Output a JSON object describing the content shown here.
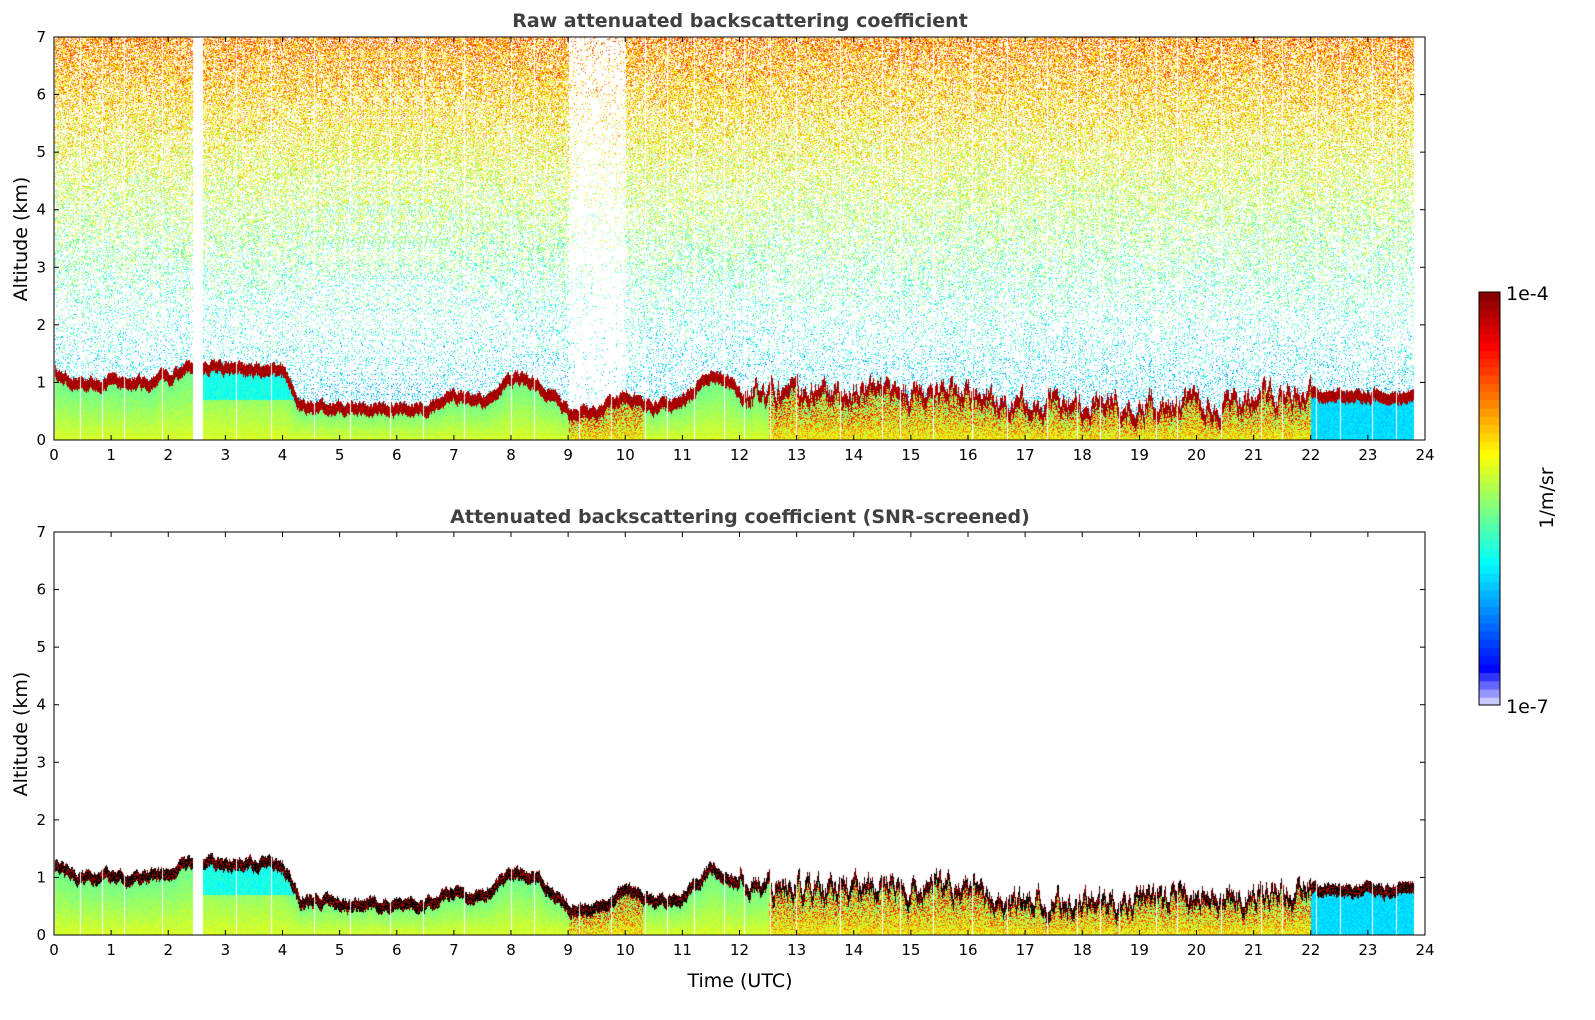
{
  "chart_data": [
    {
      "type": "heatmap",
      "title": "Raw attenuated backscattering coefficient",
      "xlabel": "",
      "ylabel": "Altitude (km)",
      "xlim": [
        0,
        24
      ],
      "ylim": [
        0,
        7
      ],
      "xticks": [
        "0",
        "1",
        "2",
        "3",
        "4",
        "5",
        "6",
        "7",
        "8",
        "9",
        "10",
        "11",
        "12",
        "13",
        "14",
        "15",
        "16",
        "17",
        "18",
        "19",
        "20",
        "21",
        "22",
        "23",
        "24"
      ],
      "yticks": [
        "0",
        "1",
        "2",
        "3",
        "4",
        "5",
        "6",
        "7"
      ],
      "screened": false
    },
    {
      "type": "heatmap",
      "title": "Attenuated backscattering coefficient (SNR-screened)",
      "xlabel": "Time (UTC)",
      "ylabel": "Altitude (km)",
      "xlim": [
        0,
        24
      ],
      "ylim": [
        0,
        7
      ],
      "xticks": [
        "0",
        "1",
        "2",
        "3",
        "4",
        "5",
        "6",
        "7",
        "8",
        "9",
        "10",
        "11",
        "12",
        "13",
        "14",
        "15",
        "16",
        "17",
        "18",
        "19",
        "20",
        "21",
        "22",
        "23",
        "24"
      ],
      "yticks": [
        "0",
        "1",
        "2",
        "3",
        "4",
        "5",
        "6",
        "7"
      ],
      "screened": true
    }
  ],
  "layer_top_estimate": {
    "time_utc": [
      0,
      0.5,
      1,
      1.5,
      2,
      2.4,
      2.7,
      3,
      3.5,
      4,
      4.3,
      5,
      6,
      6.5,
      7,
      7.5,
      8,
      8.5,
      9,
      9.5,
      10,
      10.5,
      11,
      11.5,
      12,
      13,
      14,
      15,
      16,
      16.5,
      17,
      18,
      19,
      20,
      21,
      22,
      23,
      23.8
    ],
    "altitude_km": [
      1.2,
      1.0,
      1.05,
      1.0,
      1.1,
      1.3,
      1.3,
      1.25,
      1.25,
      1.2,
      0.65,
      0.55,
      0.55,
      0.55,
      0.8,
      0.7,
      1.1,
      1.0,
      0.5,
      0.5,
      0.8,
      0.6,
      0.7,
      1.2,
      0.9,
      0.8,
      0.8,
      0.8,
      0.8,
      0.6,
      0.6,
      0.6,
      0.6,
      0.6,
      0.7,
      0.8,
      0.8,
      0.8
    ]
  },
  "data_end_utc": 23.8,
  "colorbar": {
    "label": "1/m/sr",
    "max_label": "1e-4",
    "min_label": "1e-7",
    "scale": "log",
    "colormap": "jet"
  }
}
